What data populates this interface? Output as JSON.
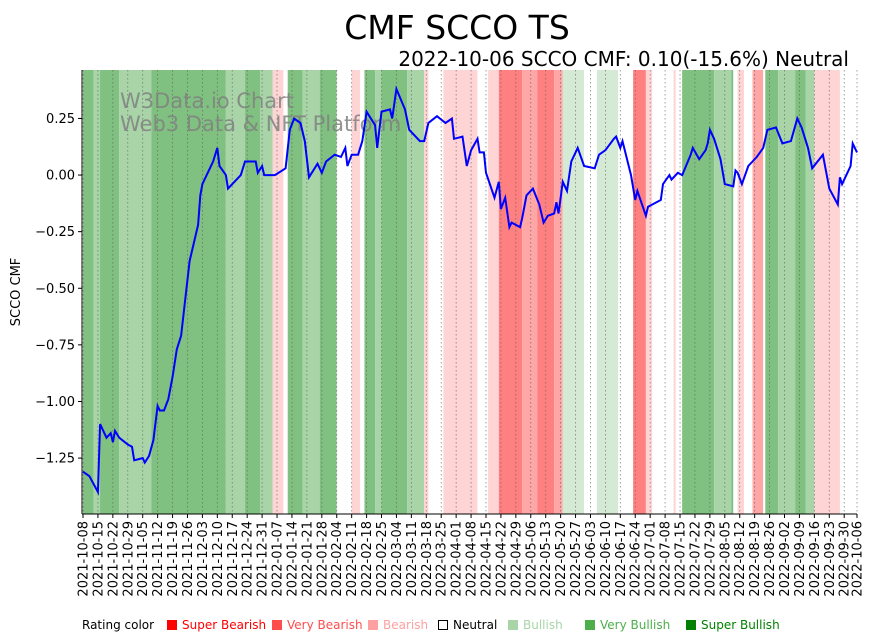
{
  "chart_data": {
    "type": "line",
    "title": "CMF SCCO TS",
    "subtitle": "2022-10-06 SCCO CMF: 0.10(-15.6%) Neutral",
    "ylabel": "SCCO CMF",
    "xlabel": "",
    "x_start_date": "2021-10-08",
    "x_unit": "days since 2021-10-08",
    "xlim": [
      0,
      363
    ],
    "ylim": [
      -1.497,
      0.464
    ],
    "yticks": [
      0.25,
      0.0,
      -0.25,
      -0.5,
      -0.75,
      -1.0,
      -1.25
    ],
    "ytick_labels": [
      "0.25",
      "0.00",
      "−0.25",
      "−0.50",
      "−0.75",
      "−1.00",
      "−1.25"
    ],
    "xtick_days": [
      0,
      7,
      14,
      21,
      28,
      35,
      42,
      49,
      56,
      63,
      70,
      77,
      84,
      91,
      98,
      105,
      112,
      119,
      126,
      133,
      140,
      147,
      154,
      161,
      168,
      175,
      182,
      189,
      196,
      203,
      210,
      217,
      224,
      231,
      238,
      245,
      252,
      259,
      266,
      273,
      280,
      287,
      294,
      301,
      308,
      315,
      322,
      329,
      336,
      343,
      350,
      357,
      363
    ],
    "xtick_labels": [
      "2021-10-08",
      "2021-10-15",
      "2021-10-22",
      "2021-10-29",
      "2021-11-05",
      "2021-11-12",
      "2021-11-19",
      "2021-11-26",
      "2021-12-03",
      "2021-12-10",
      "2021-12-17",
      "2021-12-24",
      "2021-12-31",
      "2022-01-07",
      "2022-01-14",
      "2022-01-21",
      "2022-01-28",
      "2022-02-04",
      "2022-02-11",
      "2022-02-18",
      "2022-02-25",
      "2022-03-04",
      "2022-03-11",
      "2022-03-18",
      "2022-03-25",
      "2022-04-01",
      "2022-04-08",
      "2022-04-15",
      "2022-04-22",
      "2022-04-29",
      "2022-05-06",
      "2022-05-13",
      "2022-05-20",
      "2022-05-27",
      "2022-06-03",
      "2022-06-10",
      "2022-06-17",
      "2022-06-24",
      "2022-07-01",
      "2022-07-08",
      "2022-07-15",
      "2022-07-22",
      "2022-07-29",
      "2022-08-05",
      "2022-08-12",
      "2022-08-19",
      "2022-08-26",
      "2022-09-02",
      "2022-09-09",
      "2022-09-16",
      "2022-09-23",
      "2022-09-30",
      "2022-10-06"
    ],
    "series": [
      {
        "name": "SCCO CMF",
        "color": "#0000ff",
        "points": [
          [
            0,
            -1.31
          ],
          [
            3,
            -1.33
          ],
          [
            7,
            -1.4
          ],
          [
            8,
            -1.1
          ],
          [
            11,
            -1.16
          ],
          [
            13,
            -1.14
          ],
          [
            14,
            -1.18
          ],
          [
            15,
            -1.13
          ],
          [
            17,
            -1.16
          ],
          [
            21,
            -1.19
          ],
          [
            23,
            -1.2
          ],
          [
            24,
            -1.26
          ],
          [
            28,
            -1.25
          ],
          [
            29,
            -1.27
          ],
          [
            31,
            -1.24
          ],
          [
            33,
            -1.17
          ],
          [
            35,
            -1.02
          ],
          [
            36,
            -1.04
          ],
          [
            38,
            -1.04
          ],
          [
            40,
            -0.99
          ],
          [
            42,
            -0.89
          ],
          [
            44,
            -0.77
          ],
          [
            46,
            -0.71
          ],
          [
            50,
            -0.38
          ],
          [
            54,
            -0.22
          ],
          [
            55,
            -0.09
          ],
          [
            56,
            -0.04
          ],
          [
            61,
            0.06
          ],
          [
            63,
            0.12
          ],
          [
            64,
            0.04
          ],
          [
            67,
            0.0
          ],
          [
            68,
            -0.06
          ],
          [
            70,
            -0.04
          ],
          [
            74,
            0.0
          ],
          [
            76,
            0.06
          ],
          [
            81,
            0.06
          ],
          [
            82,
            0.01
          ],
          [
            84,
            0.04
          ],
          [
            85,
            0.0
          ],
          [
            90,
            0.0
          ],
          [
            95,
            0.03
          ],
          [
            97,
            0.2
          ],
          [
            99,
            0.25
          ],
          [
            102,
            0.23
          ],
          [
            104,
            0.15
          ],
          [
            106,
            -0.01
          ],
          [
            110,
            0.05
          ],
          [
            112,
            0.01
          ],
          [
            114,
            0.06
          ],
          [
            118,
            0.09
          ],
          [
            121,
            0.08
          ],
          [
            123,
            0.12
          ],
          [
            124,
            0.04
          ],
          [
            126,
            0.09
          ],
          [
            129,
            0.09
          ],
          [
            131,
            0.15
          ],
          [
            133,
            0.28
          ],
          [
            137,
            0.22
          ],
          [
            138,
            0.12
          ],
          [
            140,
            0.28
          ],
          [
            144,
            0.29
          ],
          [
            145,
            0.25
          ],
          [
            147,
            0.38
          ],
          [
            151,
            0.29
          ],
          [
            153,
            0.2
          ],
          [
            158,
            0.15
          ],
          [
            160,
            0.15
          ],
          [
            162,
            0.23
          ],
          [
            166,
            0.26
          ],
          [
            170,
            0.23
          ],
          [
            173,
            0.25
          ],
          [
            174,
            0.16
          ],
          [
            178,
            0.17
          ],
          [
            180,
            0.04
          ],
          [
            182,
            0.11
          ],
          [
            185,
            0.16
          ],
          [
            186,
            0.1
          ],
          [
            188,
            0.1
          ],
          [
            189,
            0.01
          ],
          [
            193,
            -0.1
          ],
          [
            195,
            -0.03
          ],
          [
            196,
            -0.15
          ],
          [
            198,
            -0.1
          ],
          [
            200,
            -0.23
          ],
          [
            201,
            -0.21
          ],
          [
            205,
            -0.23
          ],
          [
            206,
            -0.19
          ],
          [
            208,
            -0.09
          ],
          [
            211,
            -0.06
          ],
          [
            214,
            -0.13
          ],
          [
            216,
            -0.21
          ],
          [
            218,
            -0.18
          ],
          [
            221,
            -0.17
          ],
          [
            222,
            -0.12
          ],
          [
            223,
            -0.17
          ],
          [
            225,
            -0.03
          ],
          [
            227,
            -0.07
          ],
          [
            229,
            0.06
          ],
          [
            232,
            0.12
          ],
          [
            235,
            0.04
          ],
          [
            240,
            0.03
          ],
          [
            242,
            0.09
          ],
          [
            245,
            0.11
          ],
          [
            249,
            0.16
          ],
          [
            250,
            0.17
          ],
          [
            252,
            0.12
          ],
          [
            253,
            0.15
          ],
          [
            257,
            0.0
          ],
          [
            259,
            -0.11
          ],
          [
            260,
            -0.07
          ],
          [
            264,
            -0.18
          ],
          [
            265,
            -0.14
          ],
          [
            271,
            -0.11
          ],
          [
            272,
            -0.04
          ],
          [
            275,
            0.0
          ],
          [
            276,
            -0.02
          ],
          [
            279,
            0.01
          ],
          [
            281,
            0.0
          ],
          [
            285,
            0.09
          ],
          [
            286,
            0.12
          ],
          [
            289,
            0.07
          ],
          [
            292,
            0.11
          ],
          [
            293,
            0.14
          ],
          [
            294,
            0.2
          ],
          [
            296,
            0.16
          ],
          [
            299,
            0.07
          ],
          [
            301,
            -0.04
          ],
          [
            305,
            -0.05
          ],
          [
            306,
            0.02
          ],
          [
            307,
            0.01
          ],
          [
            309,
            -0.04
          ],
          [
            312,
            0.04
          ],
          [
            314,
            0.06
          ],
          [
            316,
            0.08
          ],
          [
            319,
            0.12
          ],
          [
            321,
            0.2
          ],
          [
            325,
            0.21
          ],
          [
            328,
            0.14
          ],
          [
            332,
            0.15
          ],
          [
            335,
            0.25
          ],
          [
            337,
            0.21
          ],
          [
            340,
            0.12
          ],
          [
            342,
            0.03
          ],
          [
            347,
            0.09
          ],
          [
            350,
            -0.06
          ],
          [
            354,
            -0.13
          ],
          [
            355,
            -0.01
          ],
          [
            356,
            -0.04
          ],
          [
            360,
            0.04
          ],
          [
            361,
            0.14
          ],
          [
            363,
            0.1
          ]
        ]
      }
    ],
    "rating_bands": [
      [
        0,
        5,
        6
      ],
      [
        5,
        8,
        5
      ],
      [
        8,
        17,
        6
      ],
      [
        17,
        32,
        5
      ],
      [
        32,
        67,
        6
      ],
      [
        67,
        76,
        5
      ],
      [
        76,
        83,
        6
      ],
      [
        83,
        89,
        5
      ],
      [
        89,
        94,
        2
      ],
      [
        94,
        96,
        3
      ],
      [
        96,
        103,
        6
      ],
      [
        103,
        111,
        5
      ],
      [
        111,
        119,
        6
      ],
      [
        119,
        126,
        3
      ],
      [
        126,
        130,
        2
      ],
      [
        130,
        132,
        3
      ],
      [
        132,
        137,
        6
      ],
      [
        137,
        140,
        5
      ],
      [
        140,
        152,
        6
      ],
      [
        152,
        160,
        5
      ],
      [
        160,
        162,
        2
      ],
      [
        162,
        169,
        3
      ],
      [
        169,
        185,
        2
      ],
      [
        185,
        190,
        3
      ],
      [
        190,
        195,
        2
      ],
      [
        195,
        206,
        0
      ],
      [
        206,
        213,
        1
      ],
      [
        213,
        221,
        0
      ],
      [
        221,
        225,
        1
      ],
      [
        225,
        235,
        4
      ],
      [
        235,
        241,
        3
      ],
      [
        241,
        251,
        4
      ],
      [
        251,
        258,
        3
      ],
      [
        258,
        264,
        0
      ],
      [
        264,
        267,
        2
      ],
      [
        267,
        277,
        3
      ],
      [
        277,
        278,
        2
      ],
      [
        278,
        281,
        3
      ],
      [
        281,
        296,
        6
      ],
      [
        296,
        304,
        5
      ],
      [
        304,
        305,
        6
      ],
      [
        305,
        307,
        3
      ],
      [
        307,
        310,
        2
      ],
      [
        310,
        314,
        3
      ],
      [
        314,
        319,
        1
      ],
      [
        319,
        320,
        3
      ],
      [
        320,
        326,
        6
      ],
      [
        326,
        334,
        5
      ],
      [
        334,
        339,
        6
      ],
      [
        339,
        343,
        5
      ],
      [
        343,
        355,
        2
      ],
      [
        355,
        363,
        3
      ]
    ],
    "band_colors": [
      "#ff8080",
      "#ffa6a6",
      "#ffd4d4",
      "#ffffff",
      "#d4ead4",
      "#a8d4a8",
      "#80c080"
    ],
    "legend": {
      "title": "Rating color",
      "placement": "bottom",
      "items": [
        {
          "label": "Super Bearish",
          "color": "#ff0000"
        },
        {
          "label": "Very Bearish",
          "color": "#ff4c4c"
        },
        {
          "label": "Bearish",
          "color": "#ffa0a0"
        },
        {
          "label": "Neutral",
          "color": "#000000",
          "hollow": true
        },
        {
          "label": "Bullish",
          "color": "#a8d4a8"
        },
        {
          "label": "Very Bullish",
          "color": "#4caf4c"
        },
        {
          "label": "Super Bullish",
          "color": "#008000"
        }
      ]
    },
    "watermark": [
      "W3Data.io Chart",
      "Web3 Data & NFT Platform"
    ],
    "grid": "vertical dotted at x ticks"
  }
}
